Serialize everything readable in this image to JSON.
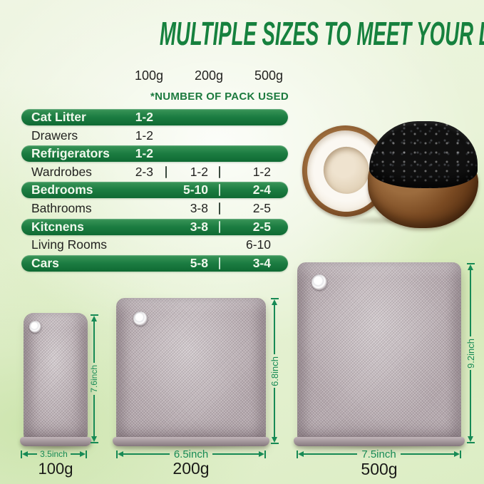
{
  "title": "MULTIPLE SIZES TO MEET YOUR DIVERSE NEEDS",
  "table": {
    "size_headers": [
      "100g",
      "200g",
      "500g"
    ],
    "note": "*NUMBER OF PACK USED",
    "rows": [
      {
        "label": "Cat Litter",
        "highlight": true,
        "c1": "1-2",
        "c2": "",
        "c3": ""
      },
      {
        "label": "Drawers",
        "highlight": false,
        "c1": "1-2",
        "c2": "",
        "c3": ""
      },
      {
        "label": "Refrigerators",
        "highlight": true,
        "c1": "1-2",
        "c2": "",
        "c3": ""
      },
      {
        "label": "Wardrobes",
        "highlight": false,
        "c1": "2-3",
        "c2": "1-2",
        "c3": "1-2"
      },
      {
        "label": "Bedrooms",
        "highlight": true,
        "c1": "",
        "c2": "5-10",
        "c3": "2-4"
      },
      {
        "label": "Bathrooms",
        "highlight": false,
        "c1": "",
        "c2": "3-8",
        "c3": "2-5"
      },
      {
        "label": "Kitcnens",
        "highlight": true,
        "c1": "",
        "c2": "3-8",
        "c3": "2-5"
      },
      {
        "label": "Living Rooms",
        "highlight": false,
        "c1": "",
        "c2": "",
        "c3": "6-10"
      },
      {
        "label": "Cars",
        "highlight": true,
        "c1": "",
        "c2": "5-8",
        "c3": "3-4"
      }
    ]
  },
  "bags": [
    {
      "size_label": "100g",
      "width_label": "3.5inch",
      "height_label": "7.6inch"
    },
    {
      "size_label": "200g",
      "width_label": "6.5inch",
      "height_label": "6.8inch"
    },
    {
      "size_label": "500g",
      "width_label": "7.5inch",
      "height_label": "9.2inch"
    }
  ],
  "image_description": "coconut halves with activated charcoal",
  "colors": {
    "title_green": "#16813e",
    "bar_green": "#1b7c41",
    "note_green": "#1c7a3e",
    "dimension_green": "#178a55",
    "bag_fabric_gray": "#b4a8ad",
    "charcoal_black": "#101010",
    "background_light_green": "#dcedc4"
  }
}
